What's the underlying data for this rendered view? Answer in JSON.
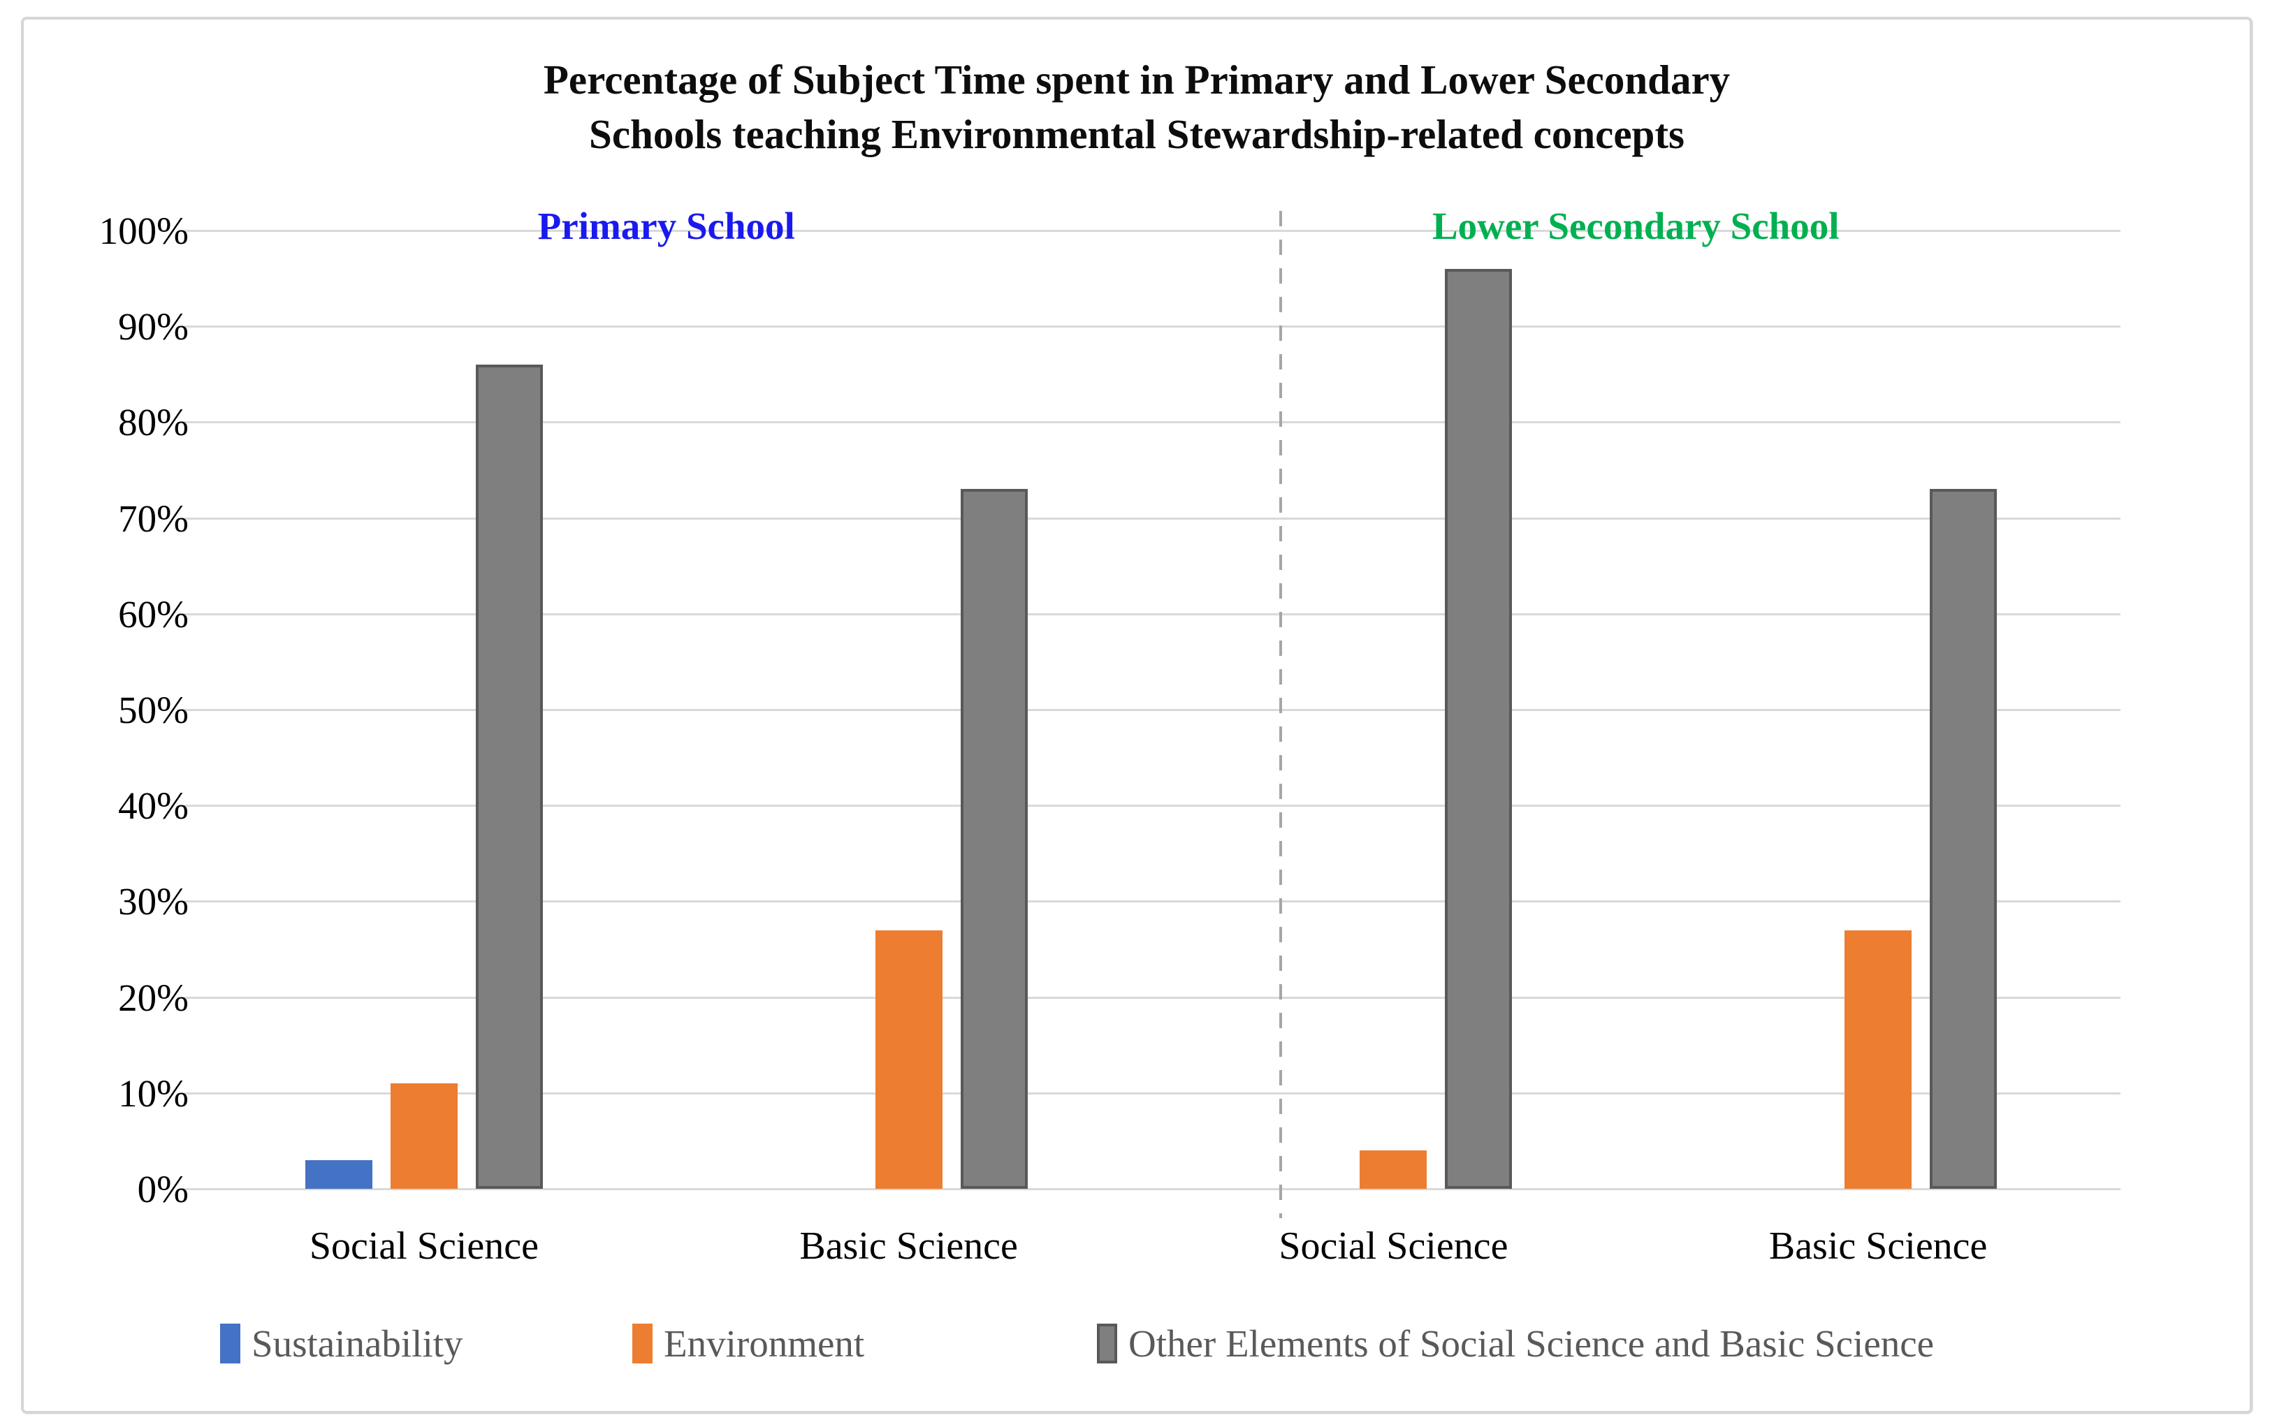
{
  "figure": {
    "title_line1": "Percentage of Subject Time spent in Primary and Lower Secondary",
    "title_line2": "Schools teaching Environmental Stewardship-related concepts"
  },
  "chart_data": {
    "type": "bar",
    "title": "Percentage of Subject Time spent in Primary and Lower Secondary Schools teaching Environmental Stewardship-related concepts",
    "categories": [
      "Social Science",
      "Basic Science",
      "Social Science",
      "Basic Science"
    ],
    "sections": [
      {
        "label": "Primary School",
        "color": "#1a1aee",
        "categories": [
          0,
          1
        ]
      },
      {
        "label": "Lower Secondary School",
        "color": "#00b050",
        "categories": [
          2,
          3
        ]
      }
    ],
    "series": [
      {
        "name": "Sustainability",
        "color": "#4472c4",
        "values": [
          3,
          0,
          0,
          0
        ]
      },
      {
        "name": "Environment",
        "color": "#ed7d31",
        "values": [
          11,
          27,
          4,
          27
        ]
      },
      {
        "name": "Other Elements of Social Science and Basic Science",
        "color": "#7f7f7f",
        "border_color": "#595959",
        "values": [
          86,
          73,
          96,
          73
        ]
      }
    ],
    "xlabel": "",
    "ylabel": "",
    "ylim": [
      0,
      100
    ],
    "ytick_step": 10,
    "ytick_suffix": "%",
    "grid": true,
    "gridline_color": "#d9d9d9",
    "legend_position": "bottom",
    "legend_text_color": "#595959",
    "divider": {
      "style": "dashed",
      "color": "#a6a6a6",
      "x_fraction": 0.566
    }
  }
}
